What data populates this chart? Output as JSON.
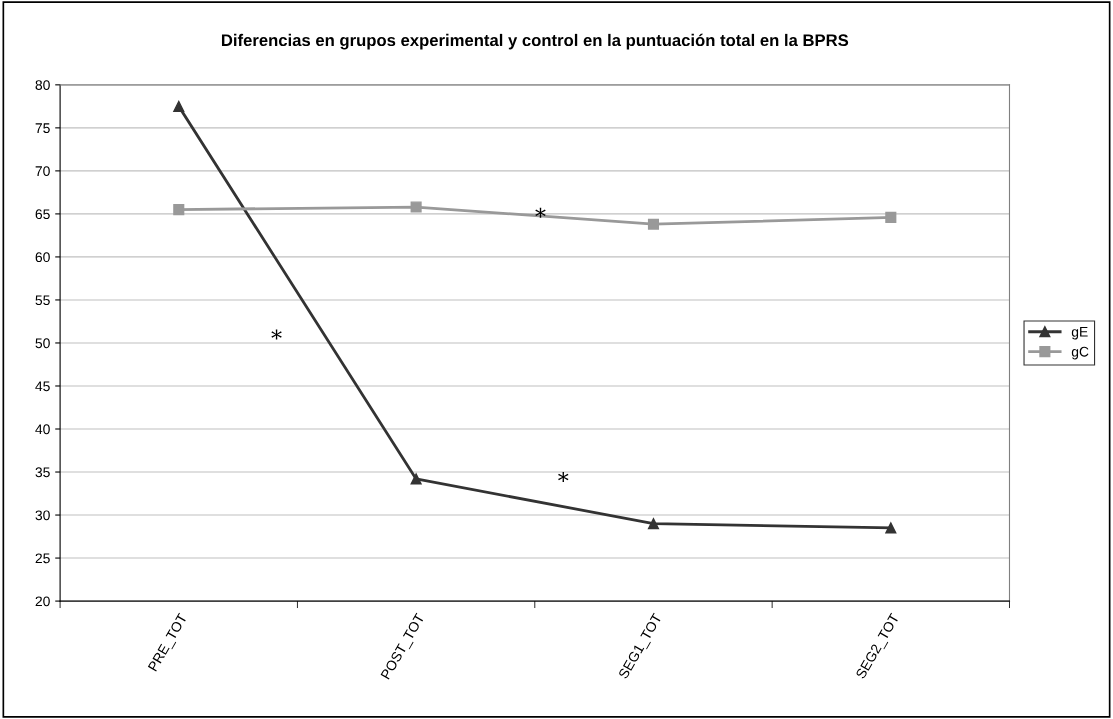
{
  "chart_data": {
    "type": "line",
    "title": "Diferencias en grupos experimental y control en la puntuación total en la BPRS",
    "categories": [
      "PRE_TOT",
      "POST_TOT",
      "SEG1_TOT",
      "SEG2_TOT"
    ],
    "series": [
      {
        "name": "gE",
        "color": "#333333",
        "marker": "triangle",
        "values": [
          77.5,
          34.2,
          29.0,
          28.5
        ]
      },
      {
        "name": "gC",
        "color": "#999999",
        "marker": "square",
        "values": [
          65.5,
          65.8,
          63.8,
          64.6
        ]
      }
    ],
    "ylim": [
      20,
      80
    ],
    "yticks": [
      20,
      25,
      30,
      35,
      40,
      45,
      50,
      55,
      60,
      65,
      70,
      75,
      80
    ],
    "grid": "y",
    "legend": "right",
    "line_style": "solid",
    "annotations": [
      "*",
      "*",
      "*"
    ]
  }
}
